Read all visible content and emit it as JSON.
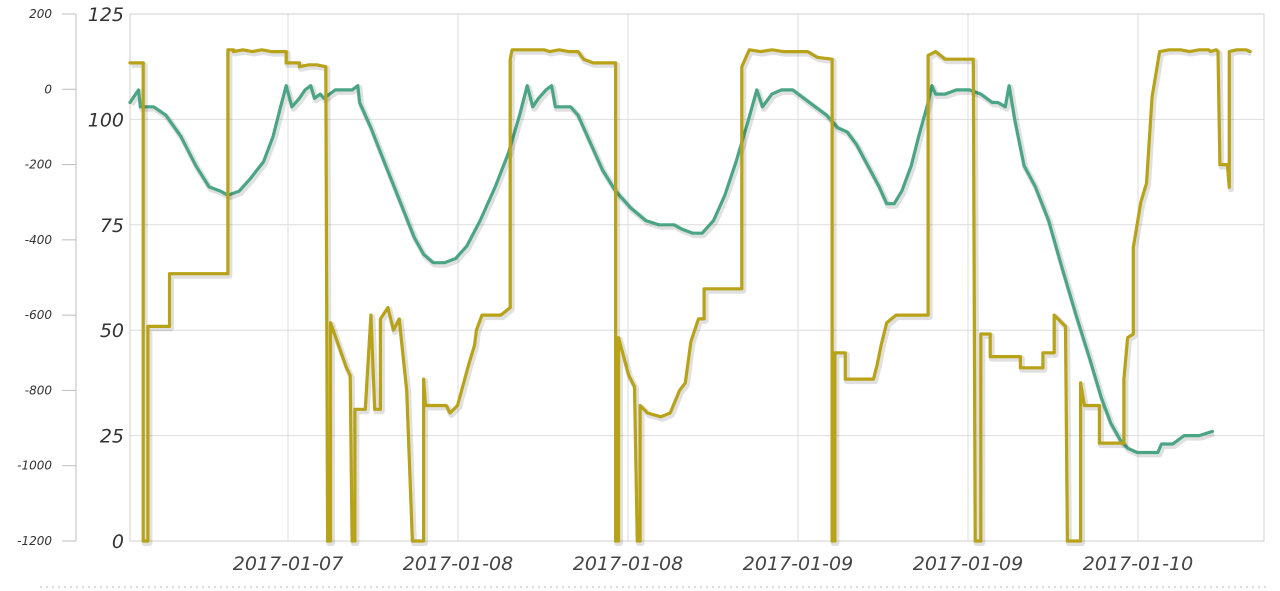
{
  "chart_data": {
    "type": "line",
    "title": "",
    "xlabel": "",
    "grid": true,
    "legend": "none",
    "x_ticks": [
      "2017-01-07",
      "2017-01-08",
      "2017-01-08",
      "2017-01-09",
      "2017-01-09",
      "2017-01-10"
    ],
    "y_left": {
      "ticks": [
        200,
        0,
        -200,
        -400,
        -600,
        -800,
        -1000,
        -1200
      ],
      "range": [
        -1200,
        200
      ]
    },
    "y_right": {
      "ticks": [
        125,
        100,
        75,
        50,
        25,
        0
      ],
      "range": [
        0,
        125
      ]
    },
    "series": [
      {
        "color": "#4aa585",
        "axis": "right",
        "points": [
          [
            0,
            104
          ],
          [
            0.09,
            107
          ],
          [
            0.11,
            103
          ],
          [
            0.25,
            103
          ],
          [
            0.38,
            101
          ],
          [
            0.54,
            96
          ],
          [
            0.7,
            89
          ],
          [
            0.84,
            84
          ],
          [
            0.96,
            83
          ],
          [
            1.04,
            82
          ],
          [
            1.16,
            83
          ],
          [
            1.28,
            86
          ],
          [
            1.42,
            90
          ],
          [
            1.52,
            96
          ],
          [
            1.6,
            103
          ],
          [
            1.66,
            108
          ],
          [
            1.72,
            103
          ],
          [
            1.8,
            105
          ],
          [
            1.86,
            107
          ],
          [
            1.92,
            108
          ],
          [
            1.96,
            105
          ],
          [
            2.02,
            106
          ],
          [
            2.06,
            105
          ],
          [
            2.12,
            106
          ],
          [
            2.18,
            107
          ],
          [
            2.24,
            107
          ],
          [
            2.3,
            107
          ],
          [
            2.36,
            107
          ],
          [
            2.42,
            108
          ],
          [
            2.44,
            104
          ],
          [
            2.56,
            98
          ],
          [
            2.7,
            90
          ],
          [
            2.86,
            81
          ],
          [
            3.02,
            72
          ],
          [
            3.12,
            68
          ],
          [
            3.22,
            66
          ],
          [
            3.34,
            66
          ],
          [
            3.46,
            67
          ],
          [
            3.58,
            70
          ],
          [
            3.72,
            76
          ],
          [
            3.88,
            84
          ],
          [
            4.02,
            92
          ],
          [
            4.14,
            101
          ],
          [
            4.22,
            108
          ],
          [
            4.28,
            103
          ],
          [
            4.34,
            105
          ],
          [
            4.42,
            107
          ],
          [
            4.48,
            108
          ],
          [
            4.52,
            103
          ],
          [
            4.6,
            103
          ],
          [
            4.68,
            103
          ],
          [
            4.76,
            101
          ],
          [
            4.88,
            95
          ],
          [
            5.02,
            88
          ],
          [
            5.16,
            83
          ],
          [
            5.32,
            79
          ],
          [
            5.48,
            76
          ],
          [
            5.62,
            75
          ],
          [
            5.72,
            75
          ],
          [
            5.78,
            75
          ],
          [
            5.86,
            74
          ],
          [
            5.98,
            73
          ],
          [
            6.08,
            73
          ],
          [
            6.2,
            76
          ],
          [
            6.32,
            82
          ],
          [
            6.44,
            90
          ],
          [
            6.56,
            99
          ],
          [
            6.66,
            107
          ],
          [
            6.72,
            103
          ],
          [
            6.82,
            106
          ],
          [
            6.92,
            107
          ],
          [
            7.04,
            107
          ],
          [
            7.16,
            105
          ],
          [
            7.28,
            103
          ],
          [
            7.4,
            101
          ],
          [
            7.52,
            98
          ],
          [
            7.62,
            97
          ],
          [
            7.72,
            94
          ],
          [
            7.84,
            89
          ],
          [
            7.96,
            84
          ],
          [
            8.04,
            80
          ],
          [
            8.12,
            80
          ],
          [
            8.2,
            83
          ],
          [
            8.3,
            89
          ],
          [
            8.38,
            96
          ],
          [
            8.48,
            104
          ],
          [
            8.52,
            108
          ],
          [
            8.56,
            106
          ],
          [
            8.66,
            106
          ],
          [
            8.78,
            107
          ],
          [
            8.92,
            107
          ],
          [
            9.04,
            106
          ],
          [
            9.16,
            104
          ],
          [
            9.22,
            104
          ],
          [
            9.3,
            103
          ],
          [
            9.34,
            108
          ],
          [
            9.4,
            100
          ],
          [
            9.5,
            89
          ],
          [
            9.62,
            84
          ],
          [
            9.76,
            76
          ],
          [
            9.9,
            65
          ],
          [
            10.06,
            53
          ],
          [
            10.2,
            43
          ],
          [
            10.32,
            34
          ],
          [
            10.42,
            28
          ],
          [
            10.52,
            24
          ],
          [
            10.6,
            22
          ],
          [
            10.7,
            21
          ],
          [
            10.82,
            21
          ],
          [
            10.92,
            21
          ],
          [
            10.96,
            23
          ],
          [
            11.08,
            23
          ],
          [
            11.2,
            25
          ],
          [
            11.36,
            25
          ],
          [
            11.5,
            26
          ]
        ]
      },
      {
        "color": "#b8a217",
        "axis": "left",
        "points": [
          [
            0,
            70
          ],
          [
            0.14,
            70
          ],
          [
            0.14,
            -1200
          ],
          [
            0.19,
            -1200
          ],
          [
            0.19,
            -630
          ],
          [
            0.42,
            -630
          ],
          [
            0.42,
            -490
          ],
          [
            1.04,
            -490
          ],
          [
            1.04,
            105
          ],
          [
            1.1,
            105
          ],
          [
            1.1,
            100
          ],
          [
            1.2,
            105
          ],
          [
            1.3,
            100
          ],
          [
            1.4,
            105
          ],
          [
            1.5,
            100
          ],
          [
            1.6,
            100
          ],
          [
            1.66,
            100
          ],
          [
            1.66,
            70
          ],
          [
            1.8,
            70
          ],
          [
            1.8,
            60
          ],
          [
            1.9,
            65
          ],
          [
            1.98,
            65
          ],
          [
            2.08,
            60
          ],
          [
            2.1,
            -1200
          ],
          [
            2.13,
            -1200
          ],
          [
            2.13,
            -620
          ],
          [
            2.3,
            -740
          ],
          [
            2.34,
            -760
          ],
          [
            2.36,
            -1200
          ],
          [
            2.39,
            -1200
          ],
          [
            2.39,
            -850
          ],
          [
            2.5,
            -850
          ],
          [
            2.5,
            -850
          ],
          [
            2.56,
            -600
          ],
          [
            2.6,
            -850
          ],
          [
            2.66,
            -850
          ],
          [
            2.66,
            -610
          ],
          [
            2.74,
            -580
          ],
          [
            2.8,
            -640
          ],
          [
            2.86,
            -610
          ],
          [
            2.94,
            -800
          ],
          [
            3.0,
            -1200
          ],
          [
            3.12,
            -1200
          ],
          [
            3.12,
            -770
          ],
          [
            3.14,
            -840
          ],
          [
            3.36,
            -840
          ],
          [
            3.4,
            -860
          ],
          [
            3.48,
            -840
          ],
          [
            3.6,
            -730
          ],
          [
            3.66,
            -680
          ],
          [
            3.68,
            -640
          ],
          [
            3.74,
            -600
          ],
          [
            3.94,
            -600
          ],
          [
            4.04,
            -580
          ],
          [
            4.04,
            80
          ],
          [
            4.06,
            105
          ],
          [
            4.14,
            105
          ],
          [
            4.26,
            105
          ],
          [
            4.4,
            105
          ],
          [
            4.46,
            100
          ],
          [
            4.56,
            105
          ],
          [
            4.66,
            100
          ],
          [
            4.76,
            100
          ],
          [
            4.82,
            80
          ],
          [
            4.92,
            70
          ],
          [
            5.16,
            70
          ],
          [
            5.16,
            -1200
          ],
          [
            5.19,
            -1200
          ],
          [
            5.19,
            -660
          ],
          [
            5.3,
            -760
          ],
          [
            5.36,
            -790
          ],
          [
            5.39,
            -1200
          ],
          [
            5.42,
            -1200
          ],
          [
            5.42,
            -840
          ],
          [
            5.5,
            -860
          ],
          [
            5.64,
            -870
          ],
          [
            5.74,
            -860
          ],
          [
            5.84,
            -800
          ],
          [
            5.9,
            -780
          ],
          [
            5.96,
            -670
          ],
          [
            6.04,
            -610
          ],
          [
            6.1,
            -610
          ],
          [
            6.1,
            -530
          ],
          [
            6.48,
            -530
          ],
          [
            6.5,
            -530
          ],
          [
            6.5,
            60
          ],
          [
            6.58,
            105
          ],
          [
            6.7,
            100
          ],
          [
            6.82,
            105
          ],
          [
            6.94,
            100
          ],
          [
            7.06,
            100
          ],
          [
            7.2,
            100
          ],
          [
            7.3,
            85
          ],
          [
            7.46,
            80
          ],
          [
            7.46,
            -1200
          ],
          [
            7.49,
            -1200
          ],
          [
            7.49,
            -700
          ],
          [
            7.6,
            -700
          ],
          [
            7.6,
            -770
          ],
          [
            7.9,
            -770
          ],
          [
            7.94,
            -730
          ],
          [
            7.98,
            -680
          ],
          [
            8.04,
            -620
          ],
          [
            8.14,
            -600
          ],
          [
            8.24,
            -600
          ],
          [
            8.3,
            -600
          ],
          [
            8.48,
            -600
          ],
          [
            8.48,
            90
          ],
          [
            8.56,
            100
          ],
          [
            8.66,
            80
          ],
          [
            8.72,
            80
          ],
          [
            8.92,
            80
          ],
          [
            8.96,
            80
          ],
          [
            8.98,
            -1200
          ],
          [
            9.04,
            -1200
          ],
          [
            9.04,
            -650
          ],
          [
            9.14,
            -650
          ],
          [
            9.14,
            -710
          ],
          [
            9.46,
            -710
          ],
          [
            9.46,
            -740
          ],
          [
            9.7,
            -740
          ],
          [
            9.7,
            -700
          ],
          [
            9.82,
            -700
          ],
          [
            9.82,
            -600
          ],
          [
            9.94,
            -630
          ],
          [
            9.96,
            -1200
          ],
          [
            10.1,
            -1200
          ],
          [
            10.1,
            -780
          ],
          [
            10.14,
            -840
          ],
          [
            10.3,
            -840
          ],
          [
            10.3,
            -940
          ],
          [
            10.56,
            -940
          ],
          [
            10.56,
            -770
          ],
          [
            10.6,
            -660
          ],
          [
            10.66,
            -650
          ],
          [
            10.66,
            -420
          ],
          [
            10.74,
            -300
          ],
          [
            10.8,
            -250
          ],
          [
            10.86,
            -20
          ],
          [
            10.94,
            100
          ],
          [
            11.04,
            105
          ],
          [
            11.16,
            105
          ],
          [
            11.26,
            100
          ],
          [
            11.36,
            105
          ],
          [
            11.46,
            105
          ],
          [
            11.48,
            100
          ],
          [
            11.54,
            105
          ],
          [
            11.56,
            100
          ],
          [
            11.58,
            -200
          ],
          [
            11.66,
            -200
          ],
          [
            11.68,
            -260
          ],
          [
            11.68,
            100
          ],
          [
            11.76,
            105
          ],
          [
            11.86,
            105
          ],
          [
            11.9,
            100
          ]
        ]
      }
    ]
  }
}
